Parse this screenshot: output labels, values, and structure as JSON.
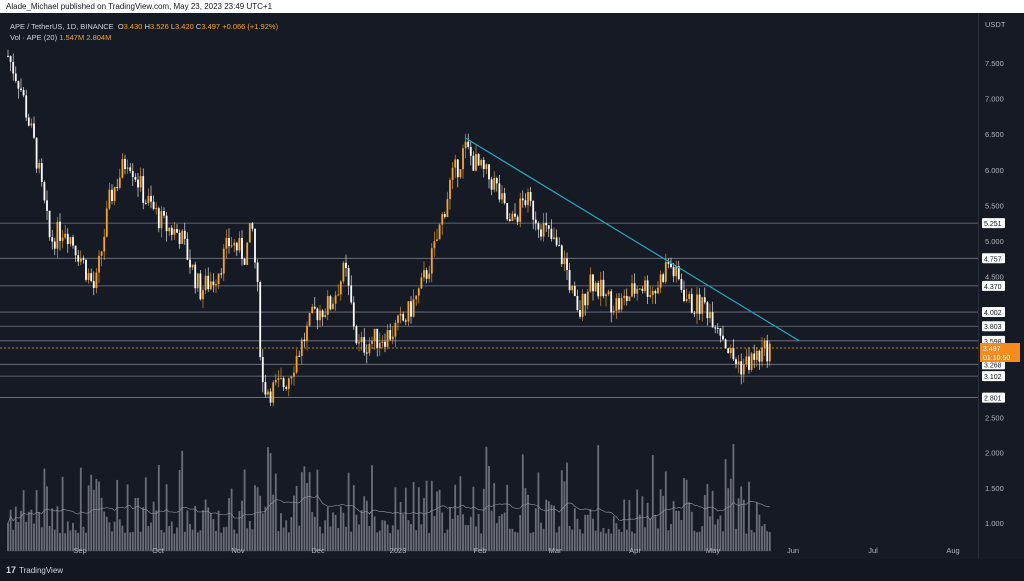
{
  "header": {
    "published_text": "Alade_Michael published on TradingView.com, May 23, 2023 23:49 UTC+1"
  },
  "legend": {
    "symbol_line": "APE / TetherUS, 1D, BINANCE",
    "o_label": "O",
    "o_value": "3.430",
    "h_label": "H",
    "h_value": "3.526",
    "l_label": "L",
    "l_value": "3.420",
    "c_label": "C",
    "c_value": "3.497",
    "change": "+0.066 (+1.92%)",
    "vol_label": "Vol · APE (20)",
    "vol_value": "1.547M",
    "vol_ma_value": "2.804M"
  },
  "axis": {
    "currency": "USDT",
    "price_ticks": [
      "7.500",
      "7.000",
      "6.500",
      "6.000",
      "5.500",
      "5.000",
      "4.500",
      "2.500",
      "2.000",
      "1.500",
      "1.000"
    ],
    "time_ticks": [
      "Sep",
      "Oct",
      "Nov",
      "Dec",
      "2023",
      "Feb",
      "Mar",
      "Apr",
      "May",
      "Jun",
      "Jul",
      "Aug"
    ]
  },
  "levels": [
    {
      "label": "5.251",
      "value": 5.251
    },
    {
      "label": "4.757",
      "value": 4.757
    },
    {
      "label": "4.370",
      "value": 4.37
    },
    {
      "label": "4.002",
      "value": 4.002
    },
    {
      "label": "3.803",
      "value": 3.803
    },
    {
      "label": "3.598",
      "value": 3.598
    },
    {
      "label": "3.268",
      "value": 3.268
    },
    {
      "label": "3.102",
      "value": 3.102
    },
    {
      "label": "2.801",
      "value": 2.801
    }
  ],
  "current_price": {
    "label": "3.497",
    "countdown": "01:10:50",
    "value": 3.497
  },
  "trendline": {
    "from": {
      "date": "Jan 25",
      "price": 6.45
    },
    "to": {
      "date": "May 26",
      "price": 3.6
    }
  },
  "colors": {
    "up": "#f6a623",
    "down": "#ffffff",
    "trendline": "#26a7bd",
    "price_tag": "#f68b1e",
    "level_line": "#787b86",
    "background": "#161a25"
  },
  "footer": {
    "brand": "TradingView"
  }
}
